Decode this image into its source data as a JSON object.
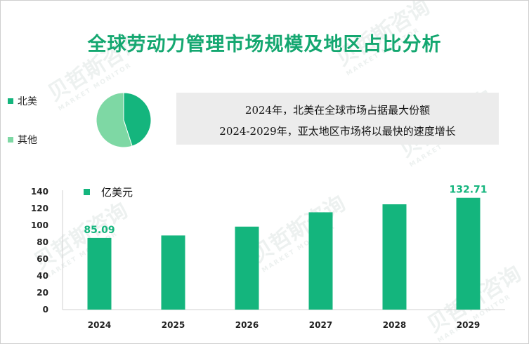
{
  "title": "全球劳动力管理市场规模及地区占比分析",
  "watermark": {
    "text": "贝哲斯咨询",
    "sub": "MARKET MONITOR"
  },
  "colors": {
    "accent": "#14a770",
    "bar": "#14b57d",
    "pie_north_america": "#14b57d",
    "pie_other": "#7ed8a4"
  },
  "pie": {
    "legend": [
      {
        "label": "北美",
        "color": "#14b57d"
      },
      {
        "label": "其他",
        "color": "#7ed8a4"
      }
    ]
  },
  "info": {
    "line1": "2024年，北美在全球市场占据最大份额",
    "line2": "2024-2029年，亚太地区市场将以最快的速度增长"
  },
  "chart_data": [
    {
      "type": "pie",
      "labels": [
        "北美",
        "其他"
      ],
      "values": [
        45,
        55
      ],
      "colors": [
        "#14b57d",
        "#7ed8a4"
      ]
    },
    {
      "type": "bar",
      "title": "",
      "legend": "亿美元",
      "categories": [
        "2024",
        "2025",
        "2026",
        "2027",
        "2028",
        "2029"
      ],
      "values": [
        85.09,
        88,
        98.5,
        115.5,
        125,
        132.71
      ],
      "data_labels": [
        {
          "index": 0,
          "text": "85.09"
        },
        {
          "index": 5,
          "text": "132.71"
        }
      ],
      "ylim": [
        0,
        140
      ],
      "yticks": [
        0,
        20,
        40,
        60,
        80,
        100,
        120,
        140
      ],
      "grid": false
    }
  ]
}
